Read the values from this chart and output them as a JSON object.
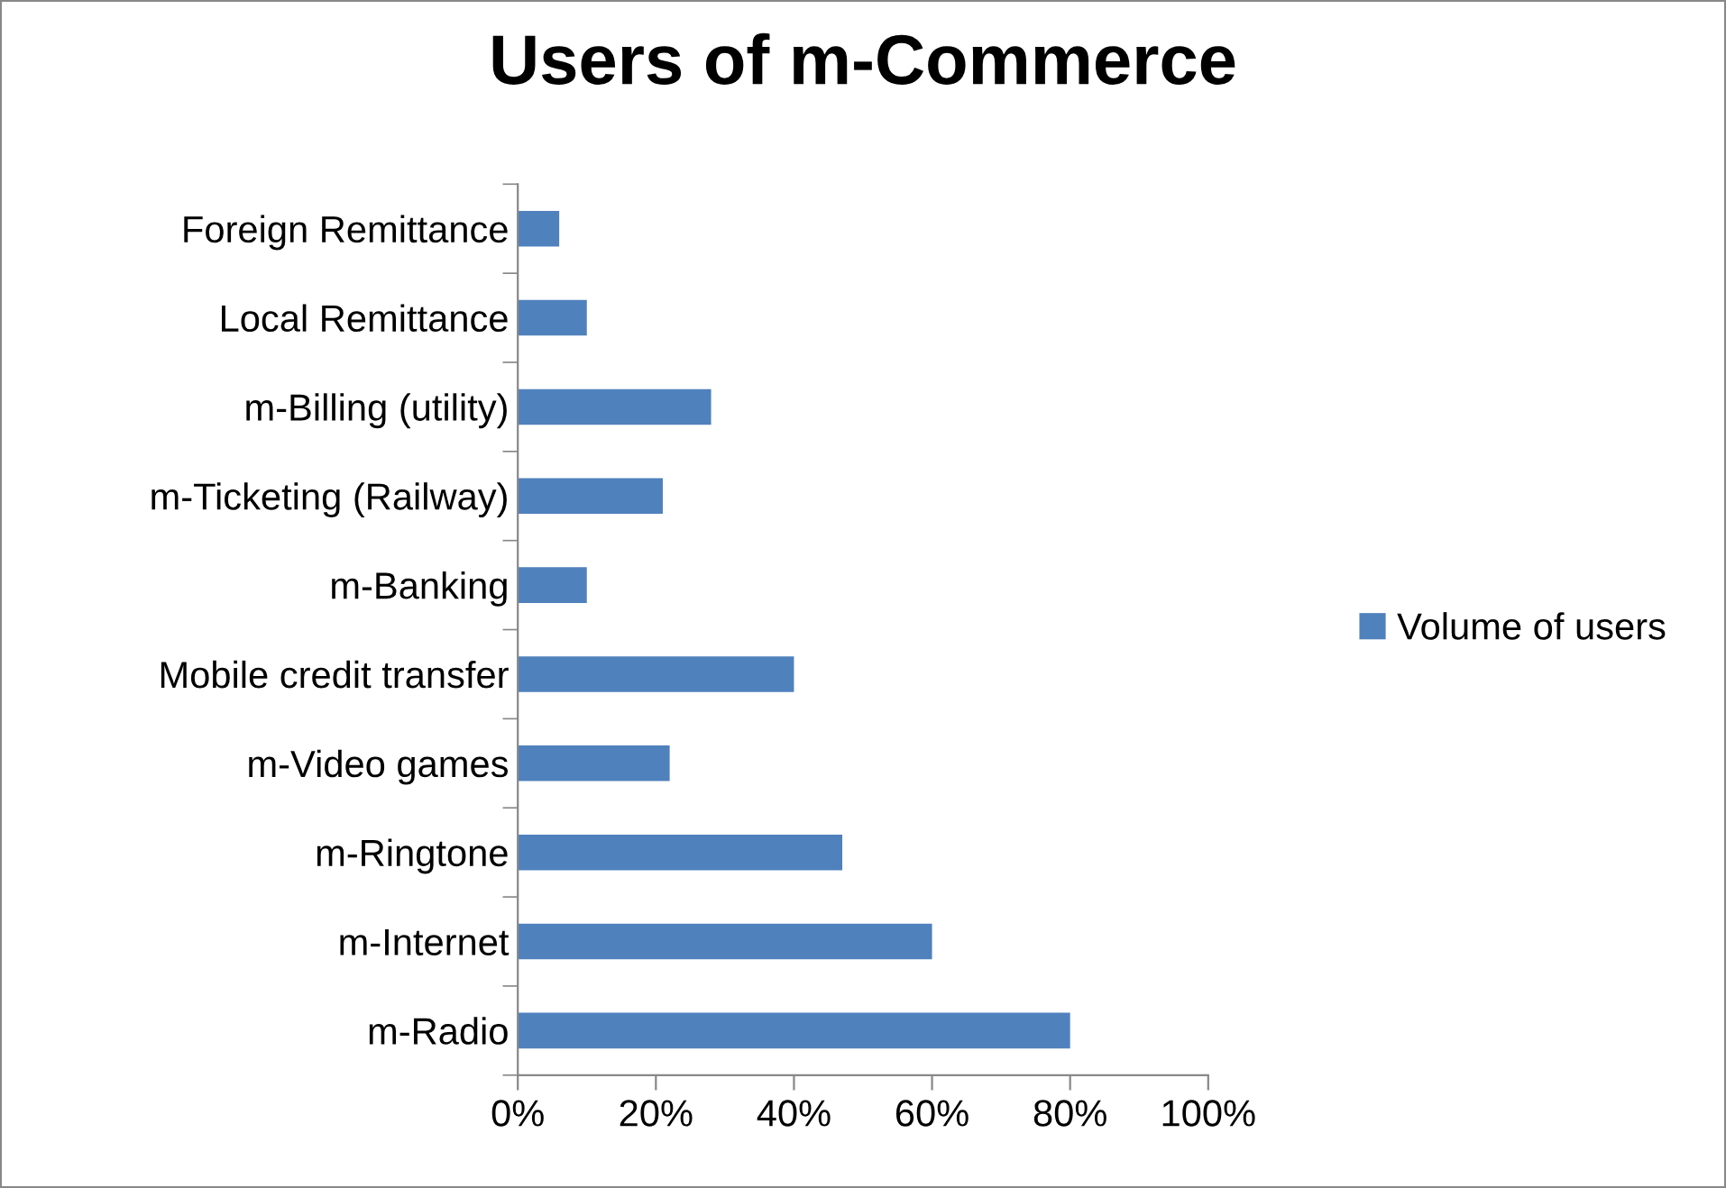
{
  "chart_data": {
    "type": "bar",
    "orientation": "horizontal",
    "title": "Users of m-Commerce",
    "categories": [
      "Foreign Remittance",
      "Local Remittance",
      "m-Billing (utility)",
      "m-Ticketing (Railway)",
      "m-Banking",
      "Mobile credit transfer",
      "m-Video games",
      "m-Ringtone",
      "m-Internet",
      "m-Radio"
    ],
    "series": [
      {
        "name": "Volume of users",
        "color": "#4f81bd",
        "values": [
          6,
          10,
          28,
          21,
          10,
          40,
          22,
          47,
          60,
          80
        ]
      }
    ],
    "xlim": [
      0,
      100
    ],
    "xticks": [
      {
        "value": 0,
        "label": "0%"
      },
      {
        "value": 20,
        "label": "20%"
      },
      {
        "value": 40,
        "label": "40%"
      },
      {
        "value": 60,
        "label": "60%"
      },
      {
        "value": 80,
        "label": "80%"
      },
      {
        "value": 100,
        "label": "100%"
      }
    ],
    "grid": false,
    "legend": "right"
  }
}
